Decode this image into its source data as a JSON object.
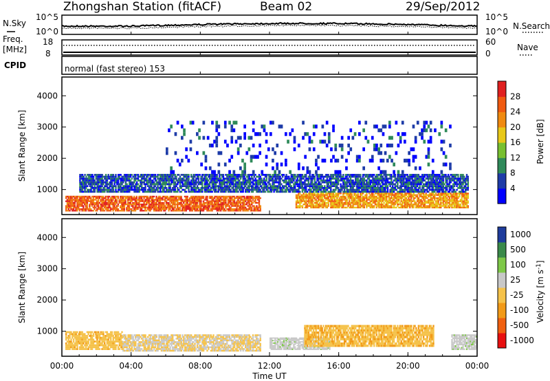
{
  "header": {
    "title": "Zhongshan Station (fitACF)",
    "beam": "Beam 02",
    "date": "29/Sep/2012"
  },
  "top_panels": {
    "nsky_label": "N.Sky",
    "nsky_ticks": [
      "10^5",
      "10^0"
    ],
    "nsearch_label": "N.Search",
    "nsearch_ticks": [
      "10^5",
      "10^0"
    ],
    "freq_label_line1": "Freq.",
    "freq_label_line2": "[MHz]",
    "freq_ticks": [
      "18",
      "8"
    ],
    "nave_label": "Nave",
    "nave_ticks": [
      "60",
      "0"
    ],
    "cpid_label": "CPID",
    "cpid_text": "normal (fast stereo) 153"
  },
  "colors": {
    "power_scale": [
      "#0000ff",
      "#1e3ca8",
      "#2f8a5a",
      "#78c030",
      "#e8c818",
      "#f08a10",
      "#f05a10",
      "#e02020"
    ],
    "velocity_scale": [
      "#e81010",
      "#f06010",
      "#f29a18",
      "#f5c24a",
      "#c8c8c8",
      "#7ec848",
      "#3a8a4a",
      "#1e3c9c"
    ]
  },
  "chart_data": [
    {
      "type": "heatmap",
      "name": "power_panel",
      "title": "",
      "xlabel": "Time UT",
      "ylabel": "Slant Range [km]",
      "xticks": [
        "00:00",
        "04:00",
        "08:00",
        "12:00",
        "16:00",
        "20:00",
        "00:00"
      ],
      "xlim_hours": [
        0,
        24
      ],
      "yticks": [
        1000,
        2000,
        3000,
        4000
      ],
      "ylim": [
        200,
        4600
      ],
      "colorbar": {
        "label": "Power [dB]",
        "ticks": [
          "4",
          "8",
          "12",
          "16",
          "20",
          "24",
          "28"
        ],
        "range": [
          0,
          30
        ]
      },
      "features": [
        {
          "description": "strong near-range echoes",
          "hours": [
            0.2,
            11.5
          ],
          "range_km": [
            300,
            800
          ],
          "power_db": 24
        },
        {
          "description": "moderate band",
          "hours": [
            13.5,
            23.5
          ],
          "range_km": [
            400,
            900
          ],
          "power_db": 20
        },
        {
          "description": "weak upper band",
          "hours": [
            1.0,
            23.5
          ],
          "range_km": [
            900,
            1500
          ],
          "power_db": 6
        },
        {
          "description": "sparse far-range scatter",
          "hours": [
            6.0,
            22.5
          ],
          "range_km": [
            1500,
            3200
          ],
          "power_db": 4
        }
      ]
    },
    {
      "type": "heatmap",
      "name": "velocity_panel",
      "title": "",
      "xlabel": "Time UT",
      "ylabel": "Slant Range [km]",
      "xticks": [
        "00:00",
        "04:00",
        "08:00",
        "12:00",
        "16:00",
        "20:00",
        "00:00"
      ],
      "xlim_hours": [
        0,
        24
      ],
      "yticks": [
        1000,
        2000,
        3000,
        4000
      ],
      "ylim": [
        200,
        4600
      ],
      "colorbar": {
        "label": "Velocity [m s^-1]",
        "ticks": [
          "1000",
          "500",
          "100",
          "25",
          "-25",
          "-100",
          "-500",
          "-1000"
        ],
        "range": [
          -1000,
          1000
        ]
      },
      "features": [
        {
          "description": "negative velocity near range",
          "hours": [
            0.2,
            3.5
          ],
          "range_km": [
            400,
            1000
          ],
          "velocity": -150
        },
        {
          "description": "near-zero velocity band",
          "hours": [
            3.5,
            11.5
          ],
          "range_km": [
            350,
            900
          ],
          "velocity": 0
        },
        {
          "description": "positive velocity patch",
          "hours": [
            12.0,
            15.5
          ],
          "range_km": [
            400,
            800
          ],
          "velocity": 150
        },
        {
          "description": "strong negative velocity",
          "hours": [
            14.0,
            21.5
          ],
          "range_km": [
            500,
            1200
          ],
          "velocity": -200
        },
        {
          "description": "positive velocity end",
          "hours": [
            22.5,
            24
          ],
          "range_km": [
            400,
            900
          ],
          "velocity": 150
        }
      ]
    }
  ]
}
